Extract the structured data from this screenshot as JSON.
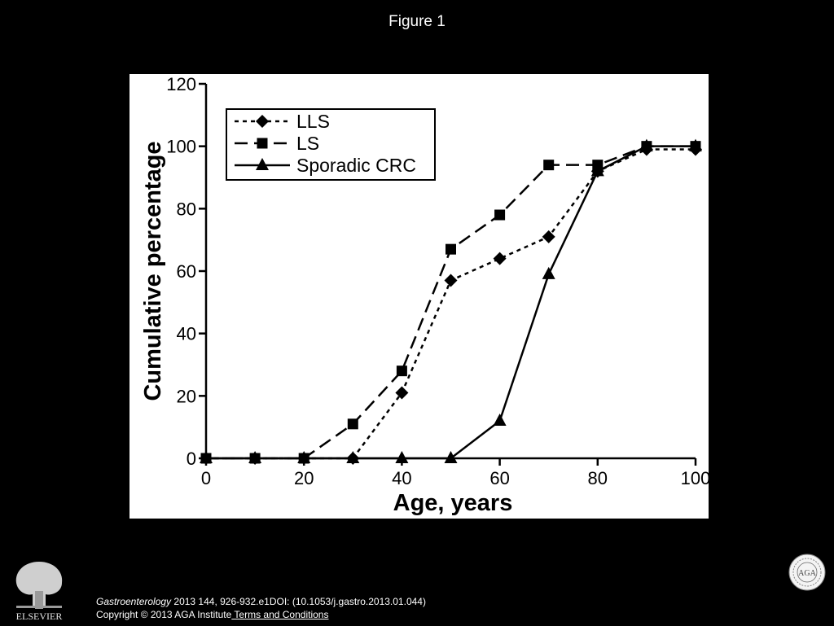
{
  "slide": {
    "title": "Figure 1"
  },
  "chart_data": {
    "type": "line",
    "xlabel": "Age, years",
    "ylabel": "Cumulative percentage",
    "xlim": [
      0,
      100
    ],
    "ylim": [
      0,
      120
    ],
    "xticks": [
      0,
      20,
      40,
      60,
      80,
      100
    ],
    "yticks": [
      0,
      20,
      40,
      60,
      80,
      100,
      120
    ],
    "grid": false,
    "legend_position": "top-left",
    "series": [
      {
        "name": "LLS",
        "marker": "diamond",
        "dash": "dotted",
        "x": [
          0,
          10,
          20,
          30,
          40,
          50,
          60,
          70,
          80,
          90,
          100
        ],
        "y": [
          0,
          0,
          0,
          0,
          21,
          57,
          64,
          71,
          92,
          99,
          99
        ]
      },
      {
        "name": "LS",
        "marker": "square",
        "dash": "dashed",
        "x": [
          0,
          10,
          20,
          30,
          40,
          50,
          60,
          70,
          80,
          90,
          100
        ],
        "y": [
          0,
          0,
          0,
          11,
          28,
          67,
          78,
          94,
          94,
          100,
          100
        ]
      },
      {
        "name": "Sporadic CRC",
        "marker": "triangle",
        "dash": "solid",
        "x": [
          0,
          10,
          20,
          30,
          40,
          50,
          60,
          70,
          80,
          90,
          100
        ],
        "y": [
          0,
          0,
          0,
          0,
          0,
          0,
          12,
          59,
          92,
          100,
          100
        ]
      }
    ]
  },
  "footer": {
    "journal": "Gastroenterology",
    "citation": " 2013 144, 926-932.e1DOI: (10.1053/j.gastro.2013.01.044)",
    "copyright": "Copyright © 2013 AGA Institute",
    "terms_link": " Terms and Conditions",
    "publisher_logo_text": "ELSEVIER",
    "seal_text": "AGA"
  }
}
